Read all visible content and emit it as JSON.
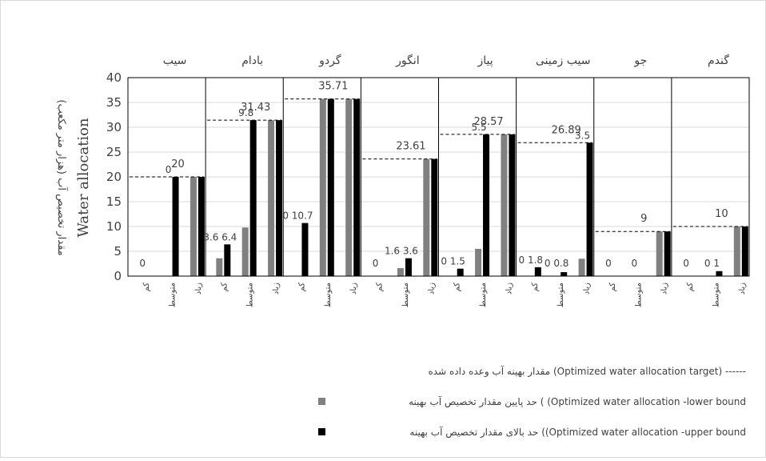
{
  "colors": {
    "lower": "#808080",
    "upper": "#000000",
    "frame": "#000000",
    "grid": "#d9d9d9",
    "text": "#404040"
  },
  "chart_data": {
    "type": "bar",
    "ylabel": "Water allocation",
    "ylabel_fa": "مقدار تخصیص آب (هزار متر مکعب)",
    "ylim": [
      0,
      40
    ],
    "yticks": [
      0,
      5,
      10,
      15,
      20,
      25,
      30,
      35,
      40
    ],
    "categories": [
      "کم",
      "متوسط",
      "زیاد"
    ],
    "groups": [
      {
        "name": "سیب",
        "target": 20,
        "target_label": "20",
        "lower": [
          0,
          0,
          20
        ],
        "upper": [
          0,
          20,
          20
        ],
        "labels": [
          "0",
          "0",
          ""
        ]
      },
      {
        "name": "بادام",
        "target": 31.43,
        "target_label": "31.43",
        "lower": [
          3.6,
          9.8,
          31.43
        ],
        "upper": [
          6.4,
          31.43,
          31.43
        ],
        "labels": [
          "3.6 6.4",
          "9.8",
          ""
        ]
      },
      {
        "name": "گردو",
        "target": 35.71,
        "target_label": "35.71",
        "lower": [
          0,
          35.71,
          35.71
        ],
        "upper": [
          10.7,
          35.71,
          35.71
        ],
        "labels": [
          "0 10.7",
          "",
          ""
        ]
      },
      {
        "name": "انگور",
        "target": 23.61,
        "target_label": "23.61",
        "lower": [
          0,
          1.6,
          23.61
        ],
        "upper": [
          0,
          3.6,
          23.61
        ],
        "labels": [
          "0",
          "1.6 3.6",
          ""
        ]
      },
      {
        "name": "پیاز",
        "target": 28.57,
        "target_label": "28.57",
        "lower": [
          0,
          5.5,
          28.57
        ],
        "upper": [
          1.5,
          28.57,
          28.57
        ],
        "labels": [
          "0 1.5",
          "5.5",
          ""
        ]
      },
      {
        "name": "سیب زمینی",
        "target": 26.89,
        "target_label": "26.89",
        "lower": [
          0,
          0,
          3.5
        ],
        "upper": [
          1.8,
          0.8,
          26.89
        ],
        "labels": [
          "0 1.8",
          "0 0.8",
          "3.5"
        ]
      },
      {
        "name": "جو",
        "target": 9,
        "target_label": "9",
        "lower": [
          0,
          0,
          9
        ],
        "upper": [
          0,
          0,
          9
        ],
        "labels": [
          "0",
          "0",
          ""
        ]
      },
      {
        "name": "گندم",
        "target": 10,
        "target_label": "10",
        "lower": [
          0,
          0,
          10
        ],
        "upper": [
          0,
          1,
          10
        ],
        "labels": [
          "0",
          "0 1",
          ""
        ]
      }
    ],
    "legend": [
      {
        "key": "target",
        "symbol": "dashed",
        "text": "مقدار بهینه آب وعده داده شده  (Optimized water allocation target)  ------"
      },
      {
        "key": "lower",
        "symbol": "square",
        "text": "حد پایین مقدار تخصیص آب بهینه ( (Optimized water allocation -lower bound"
      },
      {
        "key": "upper",
        "symbol": "square",
        "text": "حد بالای مقدار تخصیص آب بهینه ((Optimized water allocation -upper bound"
      }
    ]
  }
}
